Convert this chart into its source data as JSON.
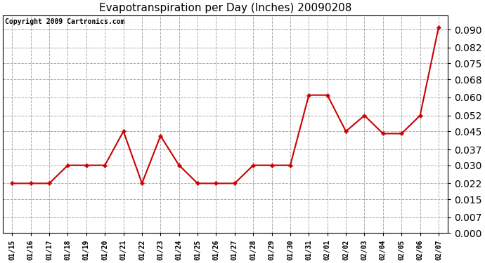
{
  "title": "Evapotranspiration per Day (Inches) 20090208",
  "copyright_text": "Copyright 2009 Cartronics.com",
  "dates": [
    "01/15",
    "01/16",
    "01/17",
    "01/18",
    "01/19",
    "01/20",
    "01/21",
    "01/22",
    "01/23",
    "01/24",
    "01/25",
    "01/26",
    "01/27",
    "01/28",
    "01/29",
    "01/30",
    "01/31",
    "02/01",
    "02/02",
    "02/03",
    "02/04",
    "02/05",
    "02/06",
    "02/07"
  ],
  "values": [
    0.022,
    0.022,
    0.022,
    0.03,
    0.03,
    0.03,
    0.045,
    0.022,
    0.043,
    0.03,
    0.022,
    0.022,
    0.022,
    0.03,
    0.03,
    0.03,
    0.061,
    0.061,
    0.045,
    0.052,
    0.044,
    0.044,
    0.052,
    0.091
  ],
  "line_color": "#cc0000",
  "marker": "+",
  "marker_size": 5,
  "line_width": 1.5,
  "ylim": [
    0.0,
    0.0963
  ],
  "yticks": [
    0.0,
    0.007,
    0.015,
    0.022,
    0.03,
    0.037,
    0.045,
    0.052,
    0.06,
    0.068,
    0.075,
    0.082,
    0.09
  ],
  "background_color": "#ffffff",
  "plot_bg_color": "#ffffff",
  "grid_color": "#aaaaaa",
  "grid_linestyle": "--",
  "title_fontsize": 11,
  "copyright_fontsize": 7,
  "tick_fontsize": 8,
  "xlabel_fontsize": 7
}
